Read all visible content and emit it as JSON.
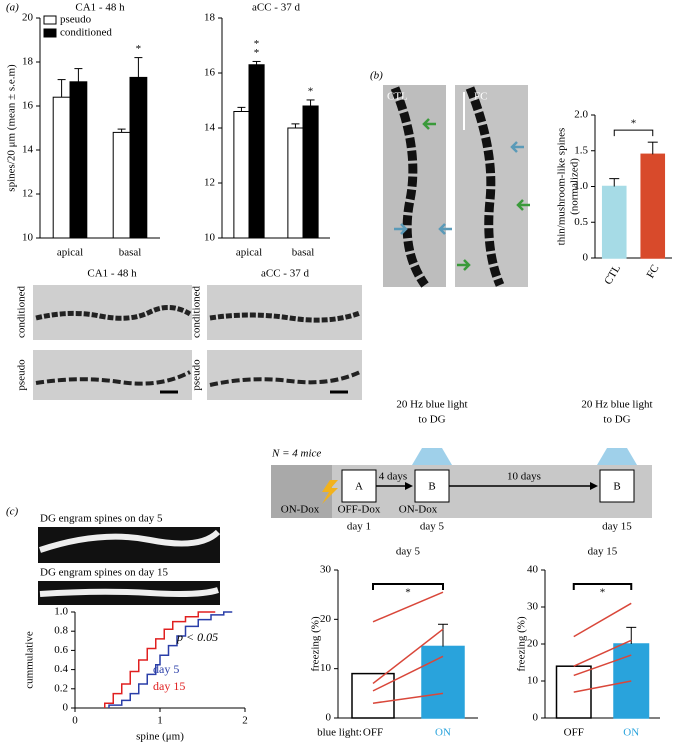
{
  "figure": {
    "panel_labels": [
      "(a)",
      "(b)",
      "(c)"
    ],
    "micrographs_a": {
      "titles": [
        "CA1 - 48 h",
        "aCC - 37 d"
      ],
      "rows": [
        "conditioned",
        "pseudo"
      ]
    },
    "micrographs_b": [
      "CTL",
      "FC"
    ],
    "micrographs_c": [
      "DG engram spines on day 5",
      "DG engram spines on day 15"
    ],
    "timeline": {
      "n_mice": "N = 4 mice",
      "stim": [
        [
          "20 Hz blue light",
          "to DG"
        ],
        [
          "20 Hz blue light",
          "to DG"
        ]
      ],
      "states": [
        "ON-Dox",
        "OFF-Dox",
        "ON-Dox"
      ],
      "boxes": [
        "A",
        "B",
        "B"
      ],
      "days": [
        "day 1",
        "day 5",
        "day 15"
      ],
      "intervals": [
        "4 days",
        "10 days"
      ]
    }
  },
  "chart_data": [
    {
      "type": "bar",
      "title": "CA1 - 48 h",
      "ylabel": [
        "spines/20 μm (mean ± s.e.m)"
      ],
      "categories": [
        "apical",
        "basal"
      ],
      "series": [
        {
          "name": "pseudo",
          "color": "#ffffff",
          "values": [
            16.4,
            14.8
          ],
          "errors": [
            0.8,
            0.15
          ]
        },
        {
          "name": "conditioned",
          "color": "#000000",
          "values": [
            17.1,
            17.3
          ],
          "errors": [
            0.6,
            0.9
          ],
          "significance": [
            [],
            [
              "*"
            ]
          ]
        }
      ],
      "ylim": [
        10,
        20
      ],
      "yticks": [
        10,
        12,
        14,
        16,
        18,
        20
      ],
      "legend": "top-left"
    },
    {
      "type": "bar",
      "title": "aCC - 37 d",
      "categories": [
        "apical",
        "basal"
      ],
      "series": [
        {
          "name": "pseudo",
          "color": "#ffffff",
          "values": [
            14.6,
            14.0
          ],
          "errors": [
            0.15,
            0.15
          ]
        },
        {
          "name": "conditioned",
          "color": "#000000",
          "values": [
            16.3,
            14.8
          ],
          "errors": [
            0.12,
            0.22
          ],
          "significance": [
            [
              "*",
              "*"
            ],
            [
              "*"
            ]
          ]
        }
      ],
      "ylim": [
        10,
        18
      ],
      "yticks": [
        10,
        12,
        14,
        16,
        18
      ]
    },
    {
      "type": "bar",
      "ylabel": [
        "thin/mushroom-like spines",
        "(normalized)"
      ],
      "categories": [
        "CTL",
        "FC"
      ],
      "values": [
        1.0,
        1.45
      ],
      "errors": [
        0.11,
        0.17
      ],
      "colors": [
        "#a6dbe6",
        "#d84a2b"
      ],
      "ylim": [
        0,
        2
      ],
      "yticks": [
        0,
        0.5,
        {
          "value": 1,
          "label": "1.0"
        },
        1.5,
        {
          "value": 2,
          "label": "2.0"
        }
      ],
      "significance": "*"
    },
    {
      "type": "line",
      "xlabel": "spine (μm)",
      "ylabel": [
        "cummulative"
      ],
      "annotation": "p < 0.05",
      "series": [
        {
          "name": "day 5",
          "color": "#2a3ea8",
          "x": [
            0.4,
            0.4,
            0.55,
            0.55,
            0.65,
            0.65,
            0.75,
            0.75,
            0.85,
            0.85,
            0.95,
            0.95,
            1.0,
            1.0,
            1.1,
            1.1,
            1.2,
            1.2,
            1.3,
            1.3,
            1.45,
            1.45,
            1.6,
            1.6,
            1.75,
            1.75,
            1.85
          ],
          "values": [
            0,
            0.03,
            0.03,
            0.08,
            0.08,
            0.15,
            0.15,
            0.25,
            0.25,
            0.35,
            0.35,
            0.45,
            0.45,
            0.55,
            0.55,
            0.65,
            0.65,
            0.75,
            0.75,
            0.85,
            0.85,
            0.92,
            0.92,
            0.97,
            0.97,
            1.0,
            1.0
          ]
        },
        {
          "name": "day 15",
          "color": "#e02020",
          "x": [
            0.35,
            0.35,
            0.45,
            0.45,
            0.55,
            0.55,
            0.65,
            0.65,
            0.75,
            0.75,
            0.85,
            0.85,
            0.95,
            0.95,
            1.05,
            1.05,
            1.15,
            1.15,
            1.3,
            1.3,
            1.45,
            1.45,
            1.65
          ],
          "values": [
            0,
            0.05,
            0.05,
            0.15,
            0.15,
            0.25,
            0.25,
            0.38,
            0.38,
            0.5,
            0.5,
            0.62,
            0.62,
            0.72,
            0.72,
            0.82,
            0.82,
            0.9,
            0.9,
            0.95,
            0.95,
            1.0,
            1.0
          ]
        }
      ],
      "xlim": [
        0,
        2
      ],
      "xticks": [
        0,
        1,
        2
      ],
      "ylim": [
        0,
        1
      ],
      "yticks": [
        0,
        0.2,
        0.4,
        0.6,
        0.8,
        {
          "value": 1,
          "label": "1.0"
        }
      ]
    },
    {
      "type": "bar",
      "title": "day 5",
      "ylabel": [
        "freezing (%)"
      ],
      "x_label_prefix": "blue light:",
      "categories": [
        "OFF",
        "ON"
      ],
      "values": [
        9,
        14.5
      ],
      "errors": [
        null,
        4.5
      ],
      "colors": [
        "#ffffff",
        "#29a3dc"
      ],
      "label_colors": [
        "#000000",
        "#29a3dc"
      ],
      "individual": {
        "color": "#d9473a",
        "values": [
          [
            19.5,
            25.5
          ],
          [
            7,
            18
          ],
          [
            5.5,
            12.5
          ],
          [
            3,
            5
          ]
        ]
      },
      "ylim": [
        0,
        30
      ],
      "yticks": [
        0,
        10,
        20,
        30
      ],
      "significance": "*"
    },
    {
      "type": "bar",
      "title": "day 15",
      "ylabel": [
        "freezing (%)"
      ],
      "categories": [
        "OFF",
        "ON"
      ],
      "values": [
        14,
        20
      ],
      "errors": [
        null,
        4.5
      ],
      "colors": [
        "#ffffff",
        "#29a3dc"
      ],
      "label_colors": [
        "#000000",
        "#29a3dc"
      ],
      "individual": {
        "color": "#d9473a",
        "values": [
          [
            22,
            31
          ],
          [
            14,
            21
          ],
          [
            11.5,
            17
          ],
          [
            7,
            10
          ]
        ]
      },
      "ylim": [
        0,
        40
      ],
      "yticks": [
        0,
        10,
        20,
        30,
        40
      ],
      "significance": "*"
    }
  ]
}
